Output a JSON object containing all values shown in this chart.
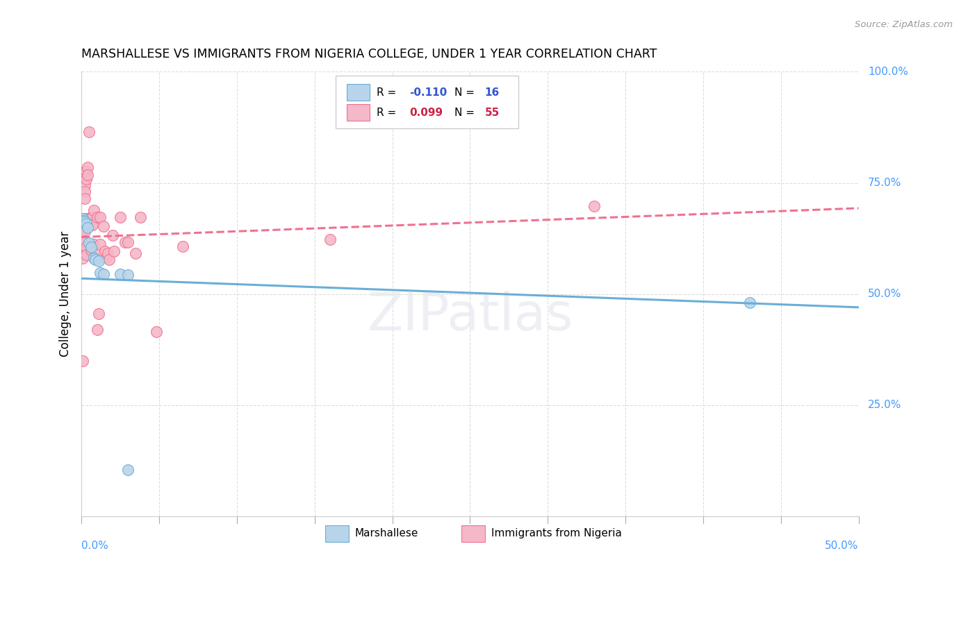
{
  "title": "MARSHALLESE VS IMMIGRANTS FROM NIGERIA COLLEGE, UNDER 1 YEAR CORRELATION CHART",
  "source": "Source: ZipAtlas.com",
  "ylabel": "College, Under 1 year",
  "xlim": [
    0.0,
    0.5
  ],
  "ylim": [
    0.0,
    1.0
  ],
  "watermark": "ZIPatlas",
  "legend_label_blue": "Marshallese",
  "legend_label_pink": "Immigrants from Nigeria",
  "blue_face_color": "#b8d4ea",
  "pink_face_color": "#f4b8c8",
  "blue_edge_color": "#6aaed6",
  "pink_edge_color": "#f07090",
  "blue_line_color": "#6aaed6",
  "pink_line_color": "#f07090",
  "axis_label_color": "#4499ff",
  "blue_scatter": [
    [
      0.001,
      0.67
    ],
    [
      0.001,
      0.665
    ],
    [
      0.002,
      0.663
    ],
    [
      0.003,
      0.658
    ],
    [
      0.004,
      0.65
    ],
    [
      0.005,
      0.615
    ],
    [
      0.006,
      0.605
    ],
    [
      0.008,
      0.58
    ],
    [
      0.009,
      0.577
    ],
    [
      0.011,
      0.575
    ],
    [
      0.012,
      0.548
    ],
    [
      0.014,
      0.545
    ],
    [
      0.025,
      0.545
    ],
    [
      0.03,
      0.543
    ],
    [
      0.43,
      0.48
    ],
    [
      0.03,
      0.105
    ]
  ],
  "pink_scatter": [
    [
      0.001,
      0.67
    ],
    [
      0.001,
      0.655
    ],
    [
      0.001,
      0.642
    ],
    [
      0.001,
      0.627
    ],
    [
      0.001,
      0.612
    ],
    [
      0.001,
      0.595
    ],
    [
      0.001,
      0.58
    ],
    [
      0.002,
      0.775
    ],
    [
      0.002,
      0.76
    ],
    [
      0.002,
      0.745
    ],
    [
      0.002,
      0.73
    ],
    [
      0.002,
      0.715
    ],
    [
      0.002,
      0.67
    ],
    [
      0.002,
      0.655
    ],
    [
      0.002,
      0.64
    ],
    [
      0.002,
      0.62
    ],
    [
      0.003,
      0.775
    ],
    [
      0.003,
      0.758
    ],
    [
      0.003,
      0.605
    ],
    [
      0.003,
      0.588
    ],
    [
      0.004,
      0.785
    ],
    [
      0.004,
      0.768
    ],
    [
      0.004,
      0.67
    ],
    [
      0.004,
      0.653
    ],
    [
      0.005,
      0.865
    ],
    [
      0.006,
      0.672
    ],
    [
      0.006,
      0.656
    ],
    [
      0.006,
      0.6
    ],
    [
      0.007,
      0.672
    ],
    [
      0.007,
      0.656
    ],
    [
      0.008,
      0.688
    ],
    [
      0.008,
      0.612
    ],
    [
      0.009,
      0.596
    ],
    [
      0.01,
      0.672
    ],
    [
      0.01,
      0.42
    ],
    [
      0.011,
      0.455
    ],
    [
      0.012,
      0.672
    ],
    [
      0.012,
      0.612
    ],
    [
      0.014,
      0.652
    ],
    [
      0.015,
      0.596
    ],
    [
      0.016,
      0.582
    ],
    [
      0.017,
      0.592
    ],
    [
      0.018,
      0.577
    ],
    [
      0.02,
      0.632
    ],
    [
      0.021,
      0.597
    ],
    [
      0.025,
      0.672
    ],
    [
      0.028,
      0.617
    ],
    [
      0.03,
      0.617
    ],
    [
      0.035,
      0.592
    ],
    [
      0.038,
      0.672
    ],
    [
      0.048,
      0.415
    ],
    [
      0.065,
      0.607
    ],
    [
      0.16,
      0.622
    ],
    [
      0.33,
      0.697
    ],
    [
      0.001,
      0.35
    ]
  ],
  "blue_trend": {
    "x": [
      0.0,
      0.5
    ],
    "y": [
      0.535,
      0.47
    ]
  },
  "pink_trend": {
    "x": [
      0.0,
      0.5
    ],
    "y": [
      0.628,
      0.693
    ]
  },
  "xticks": [
    0.0,
    0.05,
    0.1,
    0.15,
    0.2,
    0.25,
    0.3,
    0.35,
    0.4,
    0.45,
    0.5
  ],
  "yticks": [
    0.0,
    0.25,
    0.5,
    0.75,
    1.0
  ],
  "grid_color": "#dddddd",
  "background_color": "#ffffff"
}
